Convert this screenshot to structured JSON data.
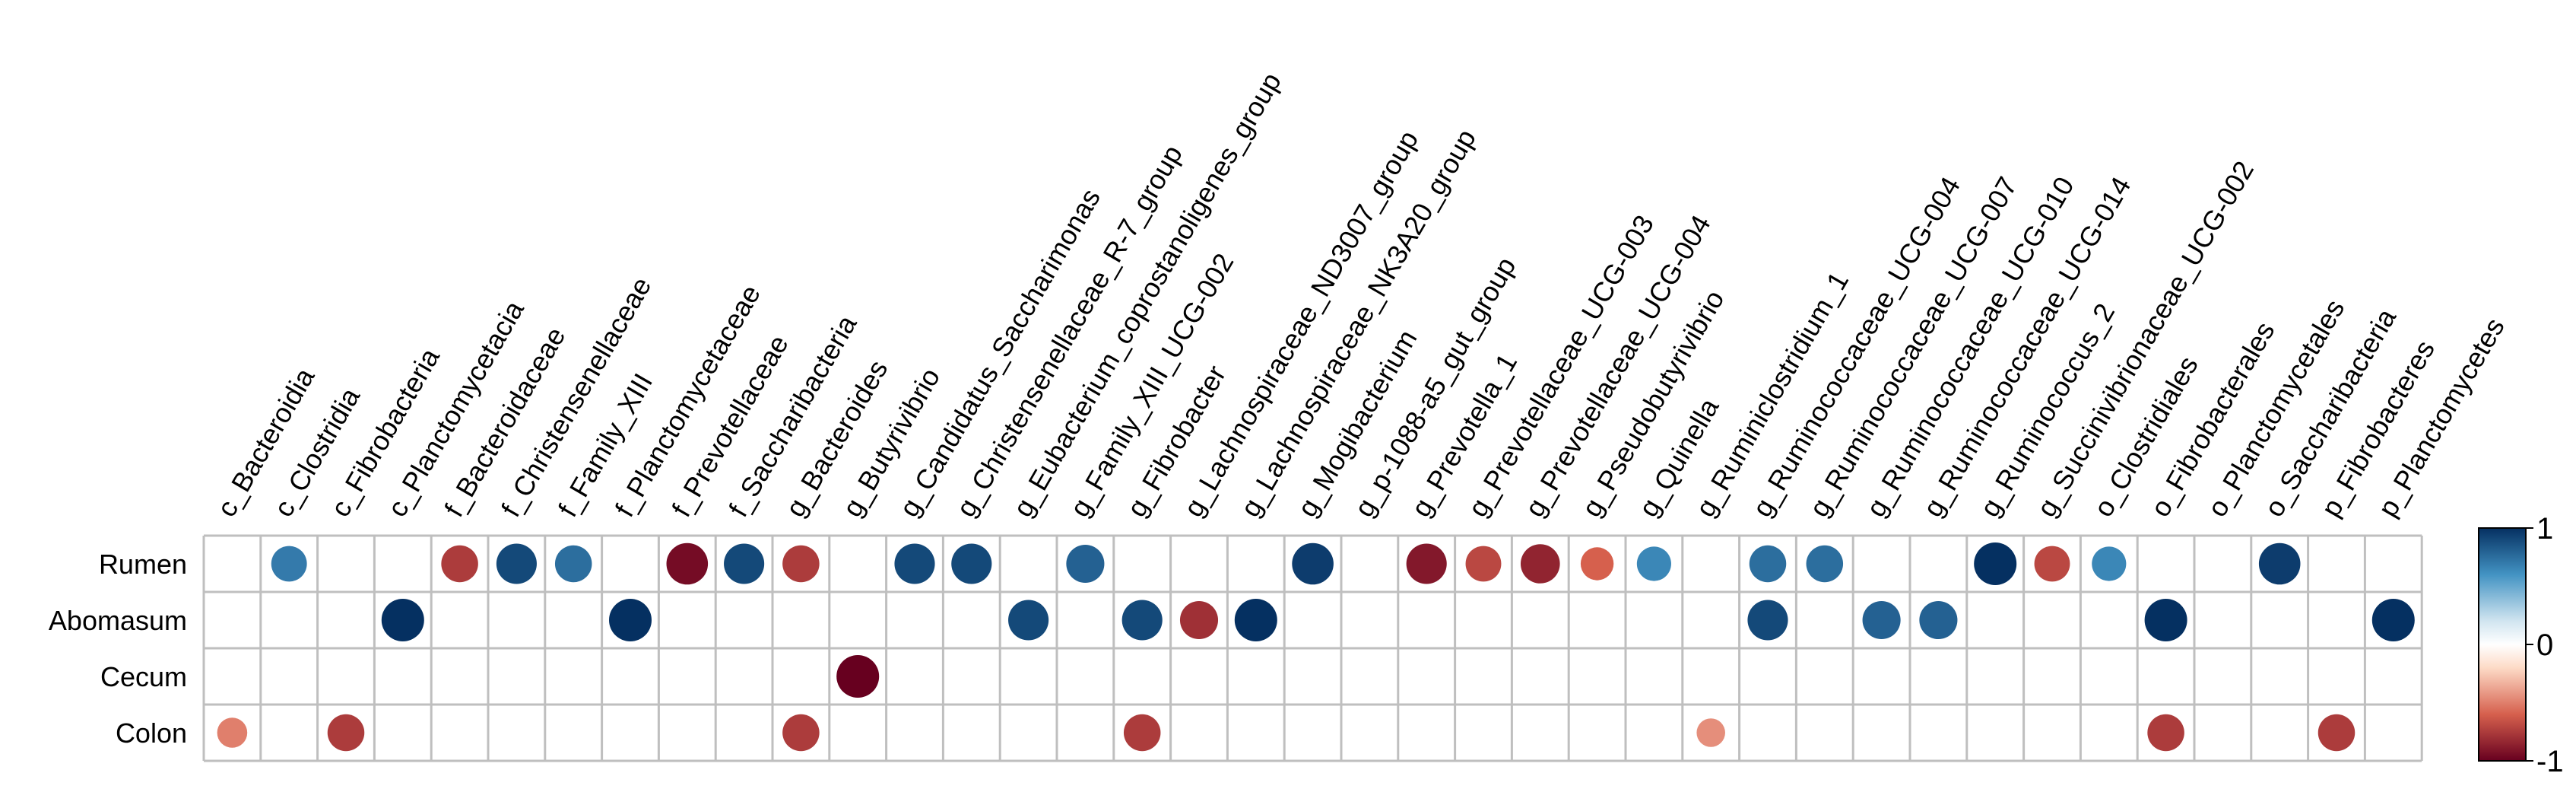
{
  "chart_data": {
    "type": "heatmap",
    "style": "correlation-dot-matrix",
    "columns": [
      "c_Bacteroidia",
      "c_Clostridia",
      "c_Fibrobacteria",
      "c_Planctomycetacia",
      "f_Bacteroidaceae",
      "f_Christensenellaceae",
      "f_Family_XIII",
      "f_Planctomycetaceae",
      "f_Prevotellaceae",
      "f_Saccharibacteria",
      "g_Bacteroides",
      "g_Butyrivibrio",
      "g_Candidatus_Saccharimonas",
      "g_Christensenellaceae_R-7_group",
      "g_Eubacterium_coprostanoligenes_group",
      "g_Family_XIII_UCG-002",
      "g_Fibrobacter",
      "g_Lachnospiraceae_ND3007_group",
      "g_Lachnospiraceae_NK3A20_group",
      "g_Mogibacterium",
      "g_p-1088-a5_gut_group",
      "g_Prevotella_1",
      "g_Prevotellaceae_UCG-003",
      "g_Prevotellaceae_UCG-004",
      "g_Pseudobutyrivibrio",
      "g_Quinella",
      "g_Ruminiclostridium_1",
      "g_Ruminococcaceae_UCG-004",
      "g_Ruminococcaceae_UCG-007",
      "g_Ruminococcaceae_UCG-010",
      "g_Ruminococcaceae_UCG-014",
      "g_Ruminococcus_2",
      "g_Succinivibrionaceae_UCG-002",
      "o_Clostridiales",
      "o_Fibrobacterales",
      "o_Planctomycetales",
      "o_Saccharibacteria",
      "p_Fibrobacteres",
      "p_Planctomycetes"
    ],
    "rows": [
      "Rumen",
      "Abomasum",
      "Cecum",
      "Colon"
    ],
    "values": [
      [
        0,
        0.7,
        0,
        0,
        -0.75,
        0.9,
        0.75,
        0,
        -0.95,
        0.9,
        -0.75,
        0,
        0.9,
        0.9,
        0,
        0.8,
        0,
        0,
        0,
        0.95,
        0,
        -0.9,
        -0.7,
        -0.85,
        -0.6,
        0.65,
        0,
        0.75,
        0.75,
        0,
        0,
        1.0,
        -0.7,
        0.65,
        0,
        0,
        0.95,
        0,
        0
      ],
      [
        0,
        0,
        0,
        1.0,
        0,
        0,
        0,
        1.0,
        0,
        0,
        0,
        0,
        0,
        0,
        0.9,
        0,
        0.9,
        -0.8,
        1.0,
        0,
        0,
        0,
        0,
        0,
        0,
        0,
        0,
        0.9,
        0,
        0.8,
        0.8,
        0,
        0,
        0,
        1.0,
        0,
        0,
        0,
        1.0
      ],
      [
        0,
        0,
        0,
        0,
        0,
        0,
        0,
        0,
        0,
        0,
        0,
        -1.0,
        0,
        0,
        0,
        0,
        0,
        0,
        0,
        0,
        0,
        0,
        0,
        0,
        0,
        0,
        0,
        0,
        0,
        0,
        0,
        0,
        0,
        0,
        0,
        0,
        0,
        0,
        0
      ],
      [
        -0.5,
        0,
        -0.75,
        0,
        0,
        0,
        0,
        0,
        0,
        0,
        -0.75,
        0,
        0,
        0,
        0,
        0,
        -0.75,
        0,
        0,
        0,
        0,
        0,
        0,
        0,
        0,
        0,
        -0.45,
        0,
        0,
        0,
        0,
        0,
        0,
        0,
        -0.75,
        0,
        0,
        -0.75,
        0
      ]
    ],
    "color_scale": {
      "min": -1,
      "mid": 0,
      "max": 1,
      "stops": [
        {
          "value": -1,
          "color": "#67001f"
        },
        {
          "value": -0.6,
          "color": "#d6604d"
        },
        {
          "value": -0.2,
          "color": "#fddbc7"
        },
        {
          "value": 0,
          "color": "#ffffff"
        },
        {
          "value": 0.2,
          "color": "#d1e5f0"
        },
        {
          "value": 0.6,
          "color": "#4393c3"
        },
        {
          "value": 1,
          "color": "#053061"
        }
      ]
    },
    "legend": {
      "placement": "right",
      "tick_labels": [
        "1",
        "0",
        "-1"
      ],
      "tick_values": [
        1,
        0,
        -1
      ]
    },
    "grid": true
  }
}
